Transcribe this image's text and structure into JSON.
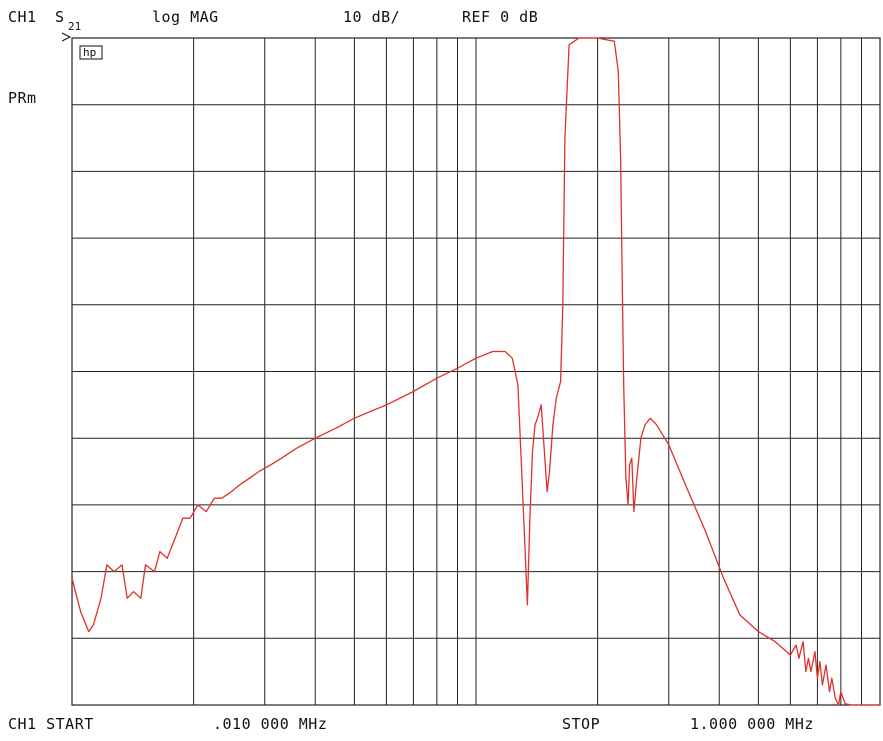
{
  "header": {
    "channel": "CH1",
    "param_main": "S",
    "param_sub": "21",
    "format": "log MAG",
    "scale": "10 dB/",
    "reference": "REF 0 dB"
  },
  "side": {
    "marker_box": "hp",
    "mode": "PRm"
  },
  "footer": {
    "start_label": "CH1 START",
    "start_value": ".010 000 MHz",
    "stop_label": "STOP",
    "stop_value": "1.000 000 MHz"
  },
  "colors": {
    "trace": "#e0302a",
    "grid": "#222222"
  },
  "chart_data": {
    "type": "line",
    "xscale": "log",
    "xlim": [
      0.01,
      1.0
    ],
    "ylim": [
      -100,
      0
    ],
    "grid": true,
    "yunit": "dB",
    "series": [
      {
        "x": [
          0.01,
          0.0105,
          0.011,
          0.0113,
          0.0118,
          0.0122,
          0.0127,
          0.0133,
          0.0137,
          0.0142,
          0.0148,
          0.0152,
          0.016,
          0.0165,
          0.0172,
          0.018,
          0.0188,
          0.0196,
          0.0205,
          0.0215,
          0.0225,
          0.0235,
          0.0248,
          0.026,
          0.0275,
          0.029,
          0.031,
          0.033,
          0.036,
          0.04,
          0.045,
          0.05,
          0.06,
          0.07,
          0.08,
          0.09,
          0.1,
          0.11,
          0.118,
          0.123,
          0.127,
          0.13,
          0.134,
          0.136,
          0.138,
          0.14,
          0.142,
          0.145,
          0.15,
          0.152,
          0.155,
          0.158,
          0.162,
          0.164,
          0.166,
          0.17,
          0.18,
          0.2,
          0.22,
          0.225,
          0.228,
          0.23,
          0.232,
          0.235,
          0.238,
          0.24,
          0.243,
          0.246,
          0.25,
          0.256,
          0.262,
          0.27,
          0.28,
          0.3,
          0.33,
          0.37,
          0.41,
          0.45,
          0.5,
          0.55,
          0.6,
          0.62,
          0.63,
          0.645,
          0.655,
          0.665,
          0.675,
          0.69,
          0.7,
          0.71,
          0.72,
          0.735,
          0.75,
          0.76,
          0.775,
          0.79,
          0.8,
          0.82,
          0.85,
          1.0
        ],
        "y": [
          -81,
          -86,
          -89,
          -88,
          -84,
          -79,
          -80,
          -79,
          -84,
          -83,
          -84,
          -79,
          -80,
          -77,
          -78,
          -75,
          -72,
          -72,
          -70,
          -71,
          -69,
          -69,
          -68,
          -67,
          -66,
          -65,
          -64,
          -63,
          -61.5,
          -60,
          -58.5,
          -57,
          -55,
          -53,
          -51,
          -49.5,
          -48,
          -47,
          -47,
          -48,
          -52,
          -66,
          -85,
          -72,
          -62,
          -58,
          -57,
          -55,
          -68,
          -65,
          -58,
          -54,
          -51.5,
          -40,
          -15,
          -1,
          0,
          0,
          -0.5,
          -5,
          -18,
          -35,
          -52,
          -66,
          -70,
          -64,
          -63,
          -71,
          -66,
          -60,
          -58,
          -57,
          -58,
          -61,
          -67,
          -74,
          -81,
          -86.5,
          -89,
          -90.5,
          -92.5,
          -91,
          -93,
          -90.5,
          -95,
          -93,
          -95,
          -92,
          -96,
          -93.5,
          -97,
          -94,
          -98,
          -96,
          -99,
          -100,
          -98,
          -99.8,
          -100,
          -100
        ]
      }
    ]
  }
}
